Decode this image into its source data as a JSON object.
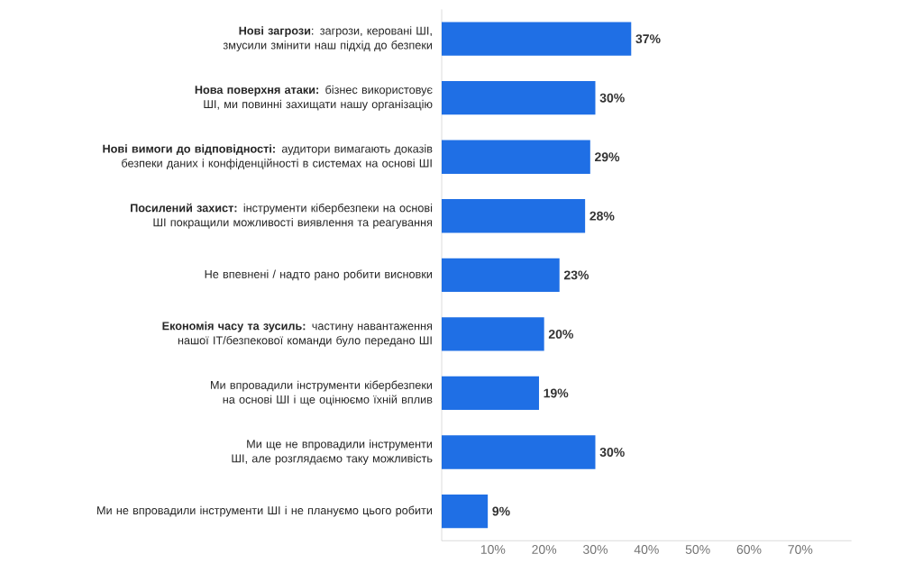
{
  "chart_data": {
    "type": "bar",
    "orientation": "horizontal",
    "categories": [
      "**Нові загрози**: загрози, керовані ШІ, змусили змінити наш підхід до безпеки",
      "**Нова поверхня атаки:** бізнес використовує ШІ, ми повинні захищати нашу організацію",
      "**Нові вимоги до відповідності:** аудитори вимагають доказів безпеки даних і конфіденційності в системах на основі ШІ",
      "**Посилений захист:** інструменти кібербезпеки на основі ШІ покращили можливості виявлення та реагування",
      "Не впевнені / надто рано робити висновки",
      "**Економія часу та зусиль:** частину навантаження нашої IT/безпекової команди було передано ШІ",
      "Ми впровадили інструменти кібербезпеки на основі ШІ і ще оцінюємо їхній вплив",
      "Ми ще не впровадили інструменти ШІ, але розглядаємо таку можливість",
      "Ми не впровадили інструменти ШІ і не плануємо цього робити"
    ],
    "values": [
      37,
      30,
      29,
      28,
      23,
      20,
      19,
      30,
      9
    ],
    "value_labels": [
      "37%",
      "30%",
      "29%",
      "28%",
      "23%",
      "20%",
      "19%",
      "30%",
      "9%"
    ],
    "color": "#1f6fe5",
    "xlim": [
      0,
      80
    ],
    "xticks": [
      {
        "value": 10,
        "label": "10%"
      },
      {
        "value": 20,
        "label": "20%"
      },
      {
        "value": 30,
        "label": "30%"
      },
      {
        "value": 40,
        "label": "40%"
      },
      {
        "value": 50,
        "label": "50%"
      },
      {
        "value": 60,
        "label": "60%"
      },
      {
        "value": 70,
        "label": "70%"
      }
    ]
  }
}
